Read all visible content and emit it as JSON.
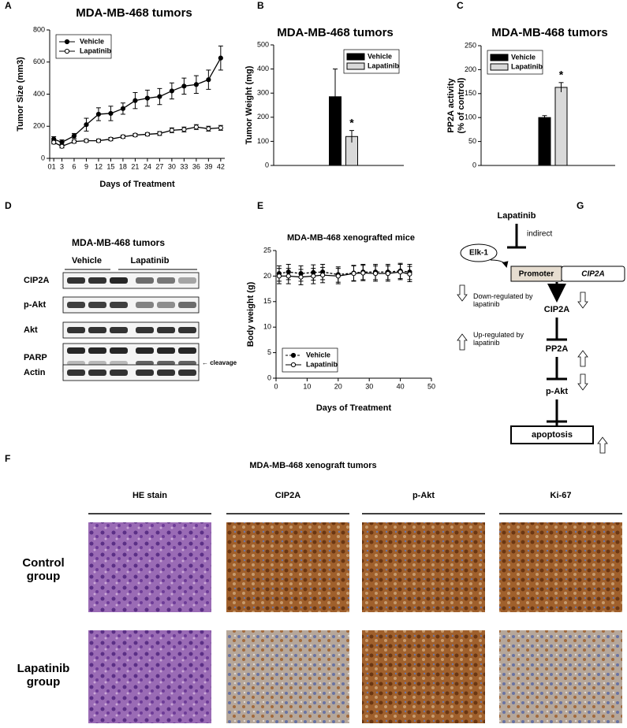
{
  "panels": [
    "A",
    "B",
    "C",
    "D",
    "E",
    "F",
    "G"
  ],
  "chart_data": [
    {
      "type": "line",
      "title": "MDA-MB-468 tumors",
      "xlabel": "Days of Treatment",
      "ylabel": "Tumor Size (mm3)",
      "x": [
        1,
        3,
        6,
        9,
        12,
        15,
        18,
        21,
        24,
        27,
        30,
        33,
        36,
        39,
        42
      ],
      "series": [
        {
          "name": "Vehicle",
          "color": "#000000",
          "marker_fill": "#000000",
          "linestyle": "solid",
          "values": [
            120,
            100,
            140,
            210,
            275,
            280,
            310,
            360,
            375,
            385,
            420,
            450,
            460,
            490,
            625
          ],
          "errors": [
            15,
            15,
            15,
            40,
            40,
            45,
            35,
            50,
            50,
            50,
            50,
            50,
            55,
            60,
            75
          ]
        },
        {
          "name": "Lapatinib",
          "color": "#000000",
          "marker_fill": "#ffffff",
          "linestyle": "solid",
          "values": [
            100,
            75,
            105,
            110,
            110,
            120,
            135,
            145,
            150,
            155,
            175,
            180,
            195,
            185,
            190
          ],
          "errors": [
            10,
            10,
            10,
            10,
            10,
            10,
            10,
            10,
            10,
            12,
            15,
            15,
            15,
            15,
            15
          ]
        }
      ],
      "xlim": [
        0,
        43
      ],
      "xticks": [
        0,
        1,
        3,
        6,
        9,
        12,
        15,
        18,
        21,
        24,
        27,
        30,
        33,
        36,
        39,
        42
      ],
      "ylim": [
        0,
        800
      ],
      "yticks": [
        0,
        200,
        400,
        600,
        800
      ],
      "legend": "upper left"
    },
    {
      "type": "bar",
      "title": "MDA-MB-468 tumors",
      "ylabel": "Tumor Weight (mg)",
      "categories": [
        null
      ],
      "series": [
        {
          "name": "Vehicle",
          "color": "#000000",
          "values": [
            285
          ],
          "errors": [
            115
          ]
        },
        {
          "name": "Lapatinib",
          "color": "#d9d9d9",
          "values": [
            120
          ],
          "errors": [
            25
          ],
          "annotation": "*"
        }
      ],
      "ylim": [
        0,
        500
      ],
      "yticks": [
        0,
        100,
        200,
        300,
        400,
        500
      ],
      "legend": "upper right"
    },
    {
      "type": "bar",
      "title": "MDA-MB-468 tumors",
      "ylabel": [
        "PP2A activity",
        "(% of control)"
      ],
      "categories": [
        null
      ],
      "series": [
        {
          "name": "Vehicle",
          "color": "#000000",
          "values": [
            100
          ],
          "errors": [
            4
          ]
        },
        {
          "name": "Lapatinib",
          "color": "#d9d9d9",
          "values": [
            163
          ],
          "errors": [
            10
          ],
          "annotation": "*"
        }
      ],
      "ylim": [
        0,
        250
      ],
      "yticks": [
        0,
        50,
        100,
        150,
        200,
        250
      ],
      "legend": "upper left"
    },
    {
      "type": "line",
      "title": "MDA-MB-468 xenografted mice",
      "xlabel": "Days of Treatment",
      "ylabel": "Body weight (g)",
      "x": [
        1,
        4,
        8,
        12,
        15,
        20,
        25,
        28,
        32,
        36,
        40,
        43
      ],
      "series": [
        {
          "name": "Vehicle",
          "color": "#000000",
          "marker_fill": "#000000",
          "linestyle": "dashed",
          "values": [
            20.5,
            20.8,
            20.5,
            20.7,
            20.8,
            20.3,
            20.6,
            20.8,
            20.8,
            20.8,
            21,
            20.8
          ],
          "errors": [
            1.5,
            1.5,
            1.5,
            1.5,
            1.5,
            1.5,
            1.5,
            1.5,
            1.5,
            1.5,
            1.5,
            1.5
          ]
        },
        {
          "name": "Lapatinib",
          "color": "#000000",
          "marker_fill": "#ffffff",
          "linestyle": "solid",
          "values": [
            20,
            20,
            19.8,
            20,
            20.2,
            20,
            20.5,
            20.6,
            20.5,
            20.5,
            20.8,
            20.4
          ],
          "errors": [
            1.5,
            1.5,
            1.5,
            1.5,
            1.5,
            1.5,
            1.5,
            1.5,
            1.5,
            1.5,
            1.5,
            1.5
          ]
        }
      ],
      "xlim": [
        0,
        50
      ],
      "xticks": [
        0,
        10,
        20,
        30,
        40,
        50
      ],
      "ylim": [
        0,
        25
      ],
      "yticks": [
        0,
        5,
        10,
        15,
        20,
        25
      ],
      "legend": "lower left"
    }
  ],
  "blot": {
    "title": "MDA-MB-468 tumors",
    "groups": [
      "Vehicle",
      "Lapatinib"
    ],
    "rows": [
      "CIP2A",
      "p-Akt",
      "Akt",
      "PARP",
      "Actin"
    ],
    "annotation": "← cleavage"
  },
  "diagram": {
    "drug": "Lapatinib",
    "mode": "indirect",
    "factor": "Elk-1",
    "promoter": "Promoter",
    "gene": "CIP2A",
    "chain": [
      "CIP2A",
      "PP2A",
      "p-Akt"
    ],
    "outcome": "apoptosis",
    "legend": [
      "Down-regulated by lapatinib",
      "Up-regulated by lapatinib"
    ]
  },
  "histology": {
    "title": "MDA-MB-468 xenograft tumors",
    "columns": [
      "HE stain",
      "CIP2A",
      "p-Akt",
      "Ki-67"
    ],
    "rows": [
      "Control group",
      "Lapatinib group"
    ]
  }
}
